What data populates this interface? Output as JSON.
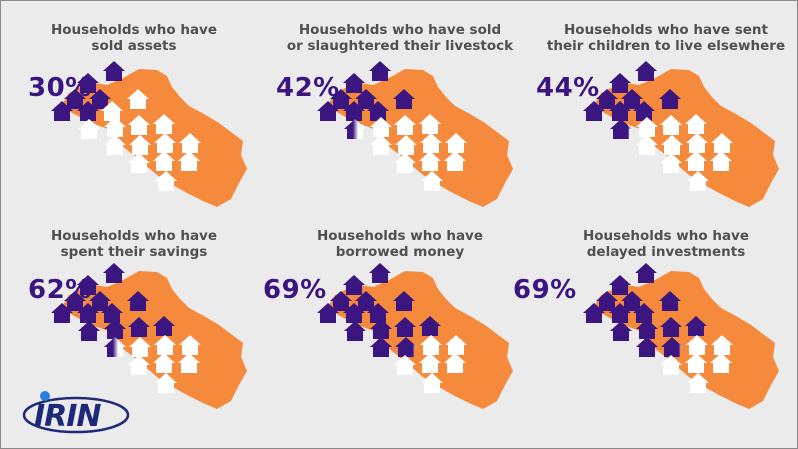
{
  "chart_data": [
    {
      "type": "pictogram",
      "title": "Households who have\nsold assets",
      "value": 30,
      "label": "30%"
    },
    {
      "type": "pictogram",
      "title": "Households who have sold\nor slaughtered their livestock",
      "value": 42,
      "label": "42%"
    },
    {
      "type": "pictogram",
      "title": "Households who have sent\ntheir children to live elsewhere",
      "value": 44,
      "label": "44%"
    },
    {
      "type": "pictogram",
      "title": "Households who have\nspent their savings",
      "value": 62,
      "label": "62%"
    },
    {
      "type": "pictogram",
      "title": "Households who have\nborrowed money",
      "value": 69,
      "label": "69%"
    },
    {
      "type": "pictogram",
      "title": "Households who have\ndelayed investments",
      "value": 69,
      "label": "69%"
    }
  ],
  "logo": {
    "text": "IRIN"
  },
  "colors": {
    "map": "#f58a3c",
    "filled_house": "#3b1580",
    "empty_house": "#ffffff",
    "logo": "#1e2a78",
    "logo_dot": "#2a7de1"
  }
}
